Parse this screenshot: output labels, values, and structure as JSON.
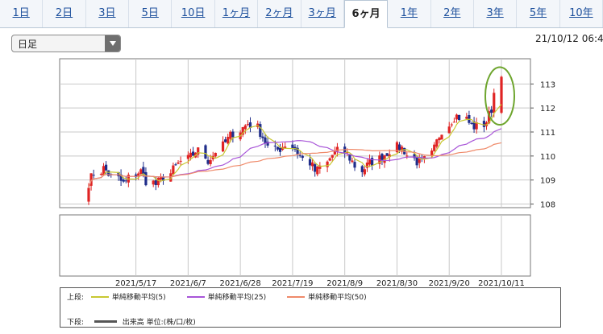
{
  "tabs": [
    {
      "label": "1日",
      "active": false
    },
    {
      "label": "2日",
      "active": false
    },
    {
      "label": "3日",
      "active": false
    },
    {
      "label": "5日",
      "active": false
    },
    {
      "label": "10日",
      "active": false
    },
    {
      "label": "1ヶ月",
      "active": false
    },
    {
      "label": "2ヶ月",
      "active": false
    },
    {
      "label": "3ヶ月",
      "active": false
    },
    {
      "label": "6ヶ月",
      "active": true
    },
    {
      "label": "1年",
      "active": false
    },
    {
      "label": "2年",
      "active": false
    },
    {
      "label": "3年",
      "active": false
    },
    {
      "label": "5年",
      "active": false
    },
    {
      "label": "10年",
      "active": false
    }
  ],
  "period_select": {
    "value": "日足"
  },
  "timestamp": "21/10/12 06:4",
  "legend": {
    "upper_label": "上段:",
    "lower_label": "下段:",
    "ma_items": [
      {
        "label": "単純移動平均(5)",
        "color": "#c8c832"
      },
      {
        "label": "単純移動平均(25)",
        "color": "#a855d8"
      },
      {
        "label": "単純移動平均(50)",
        "color": "#ef8a6a"
      }
    ],
    "volume_label": "出来高 単位:(株/口/枚)"
  },
  "chart_data": {
    "type": "candlestick",
    "x_start": "2021-04-28",
    "x_end": "2021-10-11",
    "x_ticks": [
      "2021/5/17",
      "2021/6/7",
      "2021/6/28",
      "2021/7/19",
      "2021/8/9",
      "2021/8/30",
      "2021/9/20",
      "2021/10/11"
    ],
    "y_ticks": [
      108,
      109,
      110,
      111,
      112,
      113
    ],
    "ylim": [
      107.85,
      114.05
    ],
    "grid": true,
    "colors": {
      "up": "#e02424",
      "down": "#1f2d8a",
      "ma5": "#c8c832",
      "ma25": "#a855d8",
      "ma50": "#ef8a6a",
      "highlight": "#6ea52e"
    },
    "close_path": [
      108.9,
      109.3,
      109.5,
      109.2,
      109.0,
      108.8,
      109.2,
      109.4,
      109.0,
      108.8,
      109.0,
      109.3,
      109.6,
      109.8,
      110.0,
      110.3,
      109.8,
      110.0,
      110.4,
      110.7,
      111.0,
      111.2,
      111.4,
      111.1,
      110.7,
      110.2,
      110.3,
      110.5,
      110.3,
      110.0,
      109.7,
      109.3,
      109.6,
      110.0,
      110.2,
      110.1,
      109.8,
      109.4,
      109.6,
      109.8,
      110.0,
      110.2,
      110.4,
      110.3,
      109.9,
      109.7,
      109.8,
      110.3,
      110.9,
      111.4,
      111.7,
      111.6,
      111.3,
      111.2,
      111.4,
      111.9,
      113.3
    ],
    "path_points": [
      20,
      20,
      20,
      20,
      20,
      20,
      20,
      20,
      20,
      20,
      20,
      20,
      20,
      20,
      20,
      20,
      20,
      20,
      20,
      20,
      20,
      20,
      20,
      20,
      20,
      20,
      20,
      20,
      20,
      20,
      20,
      20,
      20,
      20,
      20,
      20,
      20,
      20,
      20,
      20,
      20,
      20,
      20,
      20,
      20,
      20,
      20,
      20,
      20,
      20,
      20,
      20,
      20,
      20,
      20,
      20,
      20
    ],
    "volume": null
  }
}
